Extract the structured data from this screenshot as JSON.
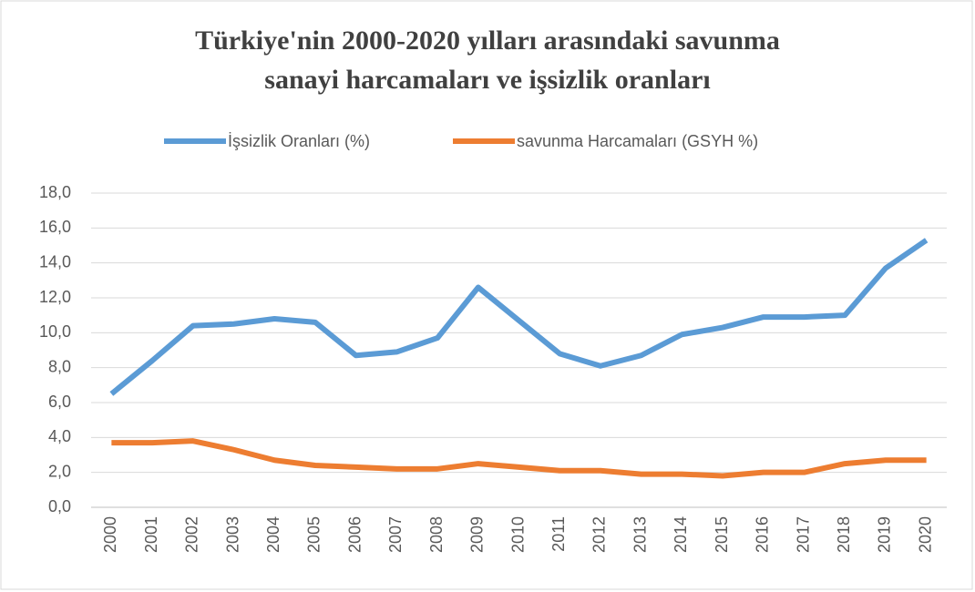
{
  "chart_data": {
    "type": "line",
    "title": [
      "Türkiye'nin 2000-2020 yılları arasındaki savunma",
      "sanayi harcamaları ve işsizlik oranları"
    ],
    "categories": [
      "2000",
      "2001",
      "2002",
      "2003",
      "2004",
      "2005",
      "2006",
      "2007",
      "2008",
      "2009",
      "2010",
      "2011",
      "2012",
      "2013",
      "2014",
      "2015",
      "2016",
      "2017",
      "2018",
      "2019",
      "2020"
    ],
    "series": [
      {
        "name": "İşsizlik Oranları (%)",
        "color": "#5b9bd5",
        "values": [
          6.5,
          8.4,
          10.4,
          10.5,
          10.8,
          10.6,
          8.7,
          8.9,
          9.7,
          12.6,
          10.7,
          8.8,
          8.1,
          8.7,
          9.9,
          10.3,
          10.9,
          10.9,
          11.0,
          13.7,
          15.3
        ]
      },
      {
        "name": "savunma Harcamaları (GSYH %)",
        "color": "#ed7d31",
        "values": [
          3.7,
          3.7,
          3.8,
          3.3,
          2.7,
          2.4,
          2.3,
          2.2,
          2.2,
          2.5,
          2.3,
          2.1,
          2.1,
          1.9,
          1.9,
          1.8,
          2.0,
          2.0,
          2.5,
          2.7,
          2.7
        ]
      }
    ],
    "ylim": [
      0,
      18
    ],
    "yticks": [
      {
        "value": 0,
        "label": "0,0"
      },
      {
        "value": 2,
        "label": "2,0"
      },
      {
        "value": 4,
        "label": "4,0"
      },
      {
        "value": 6,
        "label": "6,0"
      },
      {
        "value": 8,
        "label": "8,0"
      },
      {
        "value": 10,
        "label": "10,0"
      },
      {
        "value": 12,
        "label": "12,0"
      },
      {
        "value": 14,
        "label": "14,0"
      },
      {
        "value": 16,
        "label": "16,0"
      },
      {
        "value": 18,
        "label": "18,0"
      }
    ],
    "grid": true,
    "legend": "top"
  }
}
